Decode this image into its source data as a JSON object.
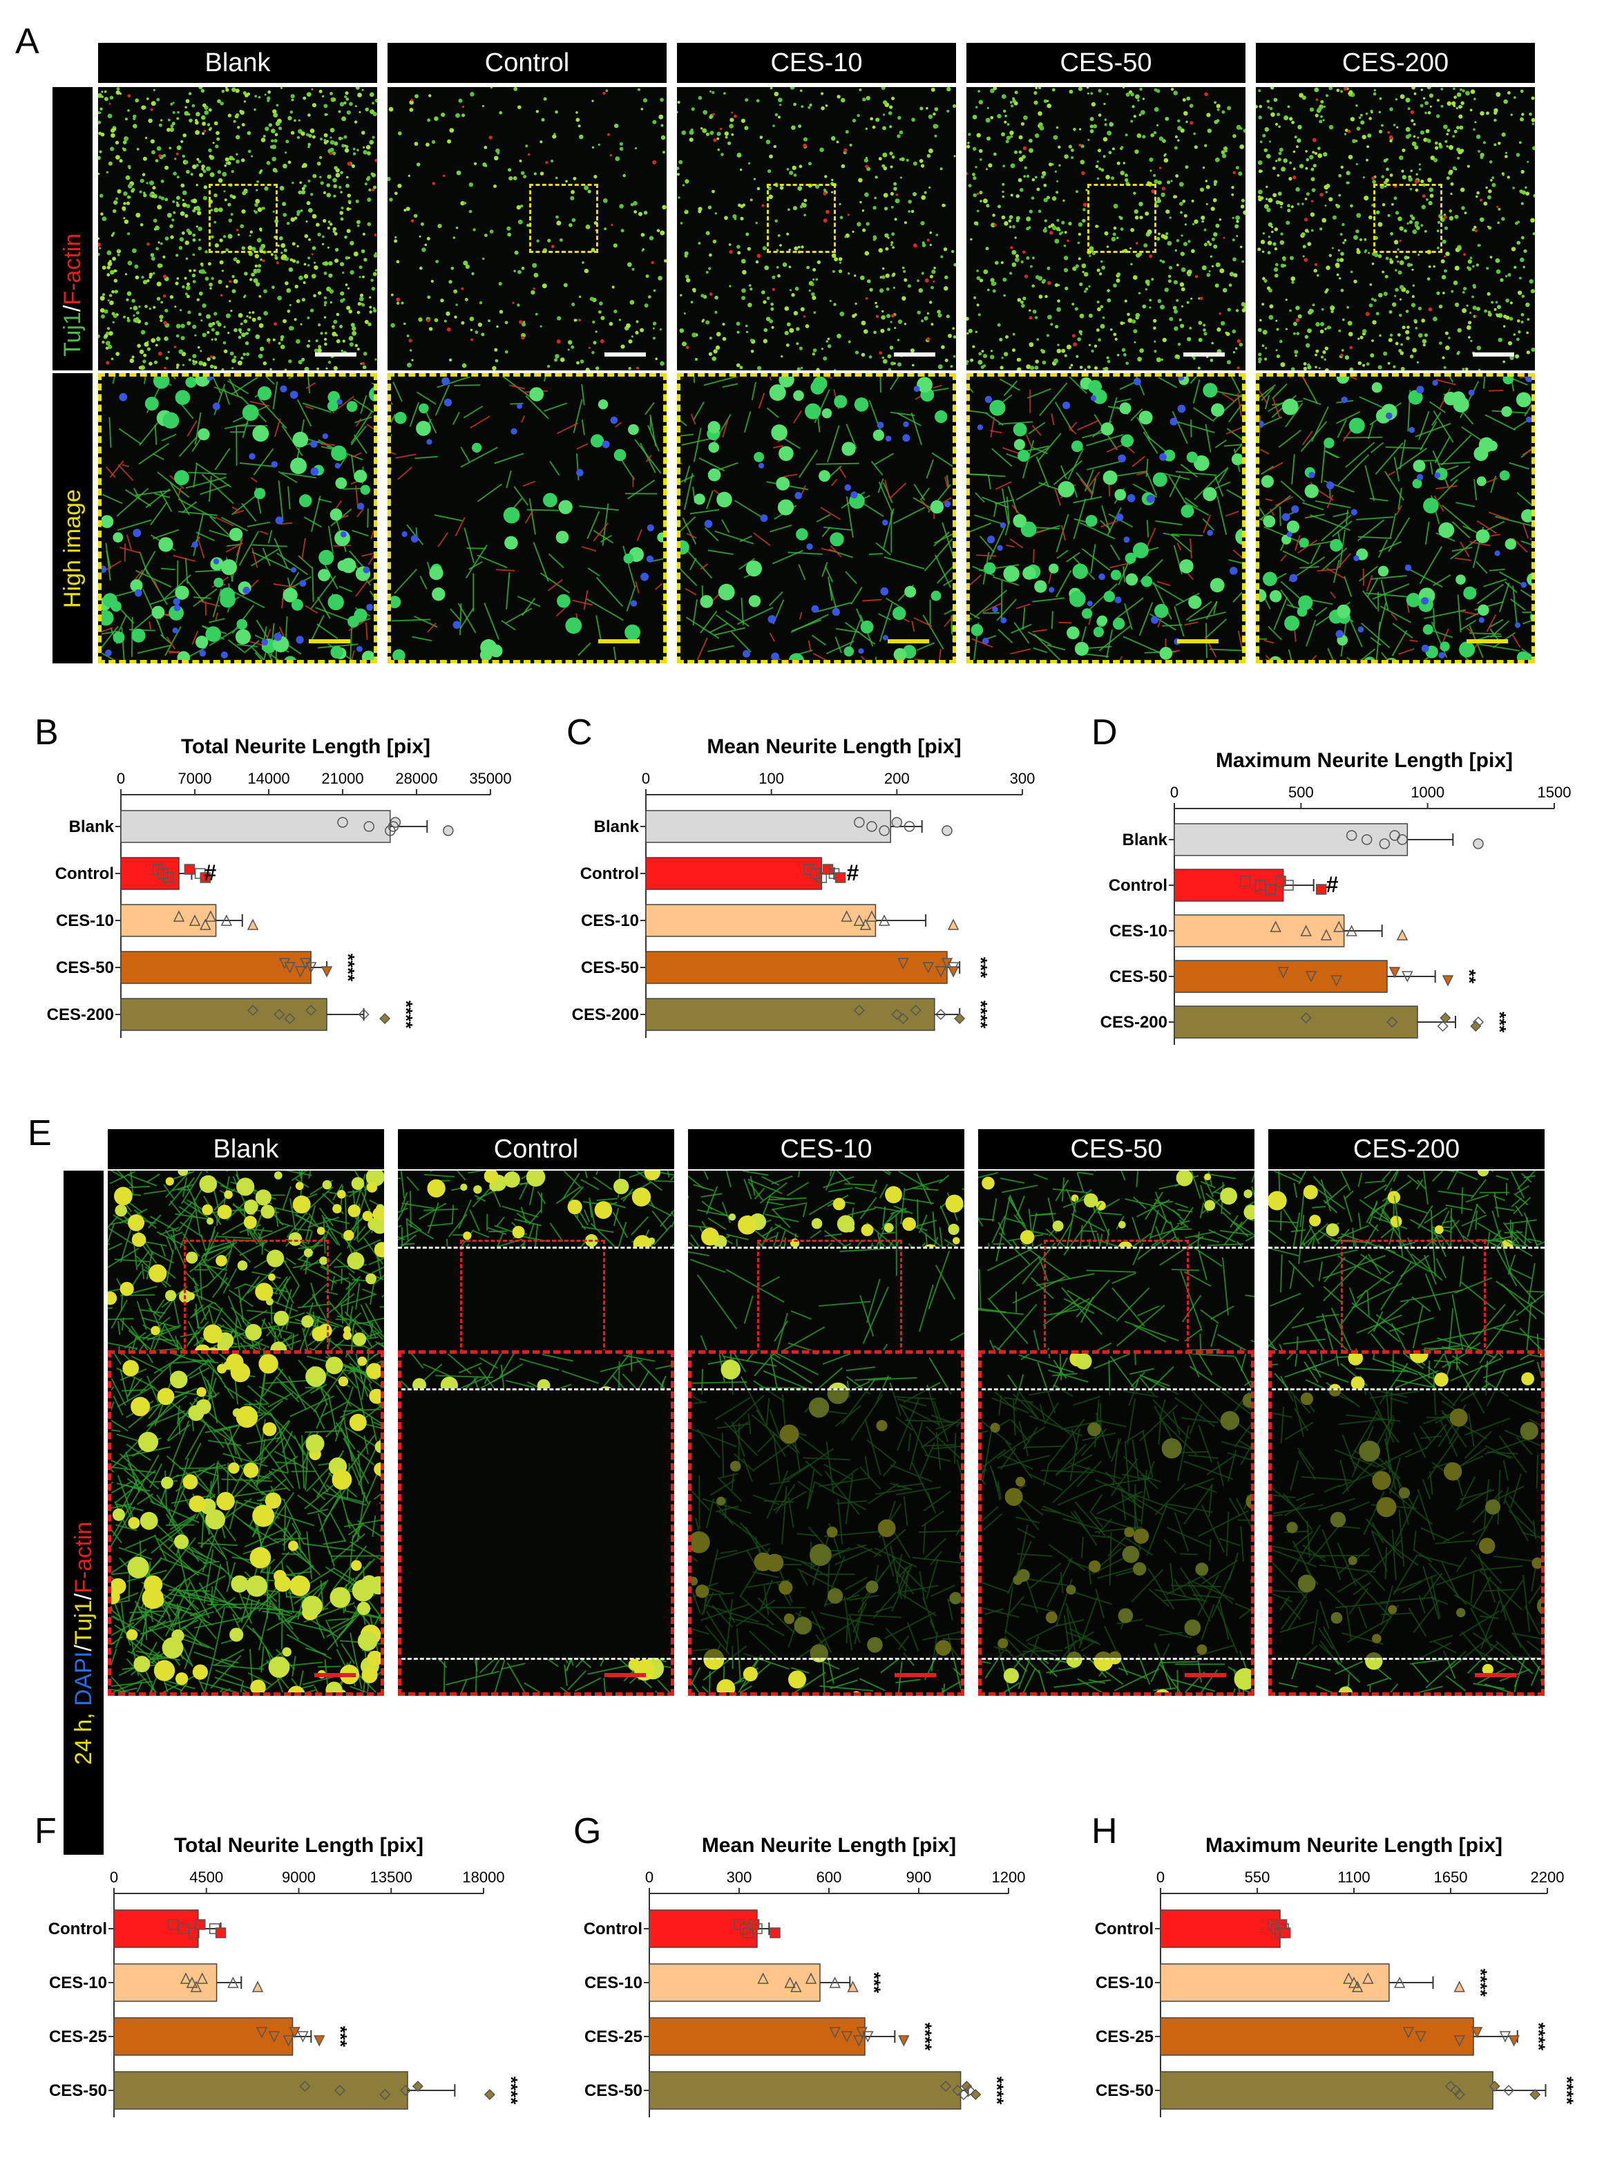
{
  "panel_letters": {
    "A": "A",
    "B": "B",
    "C": "C",
    "D": "D",
    "E": "E",
    "F": "F",
    "G": "G",
    "H": "H"
  },
  "panel_a": {
    "columns": [
      "Blank",
      "Control",
      "CES-10",
      "CES-50",
      "CES-200"
    ],
    "row1_label_tuj1": "Tuj1",
    "row1_label_slash": "/",
    "row1_label_factin": "F-actin",
    "row2_label": "High image"
  },
  "panel_e": {
    "columns": [
      "Blank",
      "Control",
      "CES-10",
      "CES-50",
      "CES-200"
    ],
    "label_24h": "24 h, ",
    "label_dapi": "DAPI",
    "label_slash1": "/",
    "label_tuj1": "Tuj1",
    "label_slash2": "/",
    "label_factin": "F-actin"
  },
  "colors": {
    "blank": "#d9d9d9",
    "control": "#ff1a1a",
    "ces_low": "#ffc58a",
    "ces_mid": "#cc6410",
    "ces_high": "#8c7d3a",
    "tuj1_green": "#4db84d",
    "factin_red": "#e02020",
    "dapi_blue": "#2a6be0",
    "highlight_yellow": "#e8e000"
  },
  "chart_data": [
    {
      "id": "B",
      "type": "bar",
      "orientation": "horizontal",
      "title": "Total Neurite Length [pix]",
      "xlim": [
        0,
        35000
      ],
      "ticks": [
        0,
        7000,
        14000,
        21000,
        28000,
        35000
      ],
      "categories": [
        "Blank",
        "Control",
        "CES-10",
        "CES-50",
        "CES-200"
      ],
      "values": [
        25500,
        5500,
        9000,
        18000,
        19500
      ],
      "errors": [
        3500,
        1200,
        2500,
        1500,
        3500
      ],
      "points": [
        [
          21000,
          23500,
          25500,
          26000,
          25800,
          31000
        ],
        [
          3500,
          4000,
          4500,
          6500,
          7500,
          8000
        ],
        [
          5500,
          7000,
          8000,
          8500,
          10000,
          12500
        ],
        [
          15500,
          16000,
          17000,
          17500,
          18000,
          19500
        ],
        [
          12500,
          15000,
          16000,
          18000,
          23000,
          25000
        ]
      ],
      "colors": [
        "#d9d9d9",
        "#ff1a1a",
        "#ffc58a",
        "#cc6410",
        "#8c7d3a"
      ],
      "sig": [
        "",
        "#",
        "",
        "****",
        "****"
      ]
    },
    {
      "id": "C",
      "type": "bar",
      "orientation": "horizontal",
      "title": "Mean Neurite Length [pix]",
      "xlim": [
        0,
        300
      ],
      "ticks": [
        0,
        100,
        200,
        300
      ],
      "categories": [
        "Blank",
        "Control",
        "CES-10",
        "CES-50",
        "CES-200"
      ],
      "values": [
        195,
        140,
        183,
        240,
        230
      ],
      "errors": [
        25,
        10,
        40,
        10,
        20
      ],
      "points": [
        [
          170,
          180,
          190,
          200,
          210,
          240
        ],
        [
          130,
          135,
          140,
          145,
          150,
          155
        ],
        [
          160,
          170,
          175,
          180,
          190,
          245
        ],
        [
          205,
          225,
          235,
          240,
          245,
          245
        ],
        [
          170,
          200,
          205,
          215,
          235,
          250
        ]
      ],
      "colors": [
        "#d9d9d9",
        "#ff1a1a",
        "#ffc58a",
        "#cc6410",
        "#8c7d3a"
      ],
      "sig": [
        "",
        "#",
        "",
        "***",
        "****"
      ]
    },
    {
      "id": "D",
      "type": "bar",
      "orientation": "horizontal",
      "title": "Maximum Neurite Length [pix]",
      "xlim": [
        0,
        1500
      ],
      "ticks": [
        0,
        500,
        1000,
        1500
      ],
      "categories": [
        "Blank",
        "Control",
        "CES-10",
        "CES-50",
        "CES-200"
      ],
      "values": [
        920,
        430,
        670,
        840,
        960
      ],
      "errors": [
        180,
        120,
        150,
        190,
        150
      ],
      "points": [
        [
          700,
          760,
          830,
          870,
          900,
          1200
        ],
        [
          280,
          340,
          380,
          420,
          450,
          580
        ],
        [
          400,
          520,
          600,
          650,
          700,
          900
        ],
        [
          430,
          540,
          640,
          870,
          920,
          1080
        ],
        [
          520,
          860,
          1060,
          1070,
          1200,
          1190
        ]
      ],
      "colors": [
        "#d9d9d9",
        "#ff1a1a",
        "#ffc58a",
        "#cc6410",
        "#8c7d3a"
      ],
      "sig": [
        "",
        "#",
        "",
        "**",
        "***"
      ]
    },
    {
      "id": "F",
      "type": "bar",
      "orientation": "horizontal",
      "title": "Total Neurite Length [pix]",
      "xlim": [
        0,
        18000
      ],
      "ticks": [
        0,
        4500,
        9000,
        13500,
        18000
      ],
      "categories": [
        "Control",
        "CES-10",
        "CES-25",
        "CES-50"
      ],
      "values": [
        4100,
        5000,
        8700,
        14300
      ],
      "errors": [
        1100,
        1200,
        900,
        2300
      ],
      "points": [
        [
          2900,
          3400,
          3900,
          4200,
          4900,
          5200
        ],
        [
          3500,
          3800,
          4000,
          4300,
          5800,
          7000
        ],
        [
          7200,
          7800,
          8500,
          8800,
          9200,
          10000
        ],
        [
          9300,
          11000,
          13200,
          14800,
          14200,
          18300
        ]
      ],
      "colors": [
        "#ff1a1a",
        "#ffc58a",
        "#cc6410",
        "#8c7d3a"
      ],
      "sig": [
        "",
        "",
        "***",
        "****"
      ]
    },
    {
      "id": "G",
      "type": "bar",
      "orientation": "horizontal",
      "title": "Mean Neurite Length [pix]",
      "xlim": [
        0,
        1200
      ],
      "ticks": [
        0,
        300,
        600,
        900,
        1200
      ],
      "categories": [
        "Control",
        "CES-10",
        "CES-25",
        "CES-50"
      ],
      "values": [
        360,
        570,
        720,
        1040
      ],
      "errors": [
        40,
        100,
        100,
        25
      ],
      "points": [
        [
          300,
          320,
          330,
          350,
          360,
          420
        ],
        [
          380,
          470,
          490,
          540,
          620,
          680
        ],
        [
          620,
          660,
          700,
          710,
          730,
          850
        ],
        [
          990,
          1030,
          1050,
          1060,
          1070,
          1090
        ]
      ],
      "colors": [
        "#ff1a1a",
        "#ffc58a",
        "#cc6410",
        "#8c7d3a"
      ],
      "sig": [
        "",
        "***",
        "****",
        "****"
      ]
    },
    {
      "id": "H",
      "type": "bar",
      "orientation": "horizontal",
      "title": "Maximum Neurite Length [pix]",
      "xlim": [
        0,
        2200
      ],
      "ticks": [
        0,
        550,
        1100,
        1650,
        2200
      ],
      "categories": [
        "Control",
        "CES-10",
        "CES-25",
        "CES-50"
      ],
      "values": [
        680,
        1300,
        1780,
        1890
      ],
      "errors": [
        30,
        250,
        250,
        300
      ],
      "points": [
        [
          640,
          660,
          680,
          690,
          700,
          710
        ],
        [
          1070,
          1100,
          1120,
          1180,
          1360,
          1700
        ],
        [
          1410,
          1480,
          1700,
          1800,
          1960,
          2010
        ],
        [
          1650,
          1680,
          1700,
          1900,
          1980,
          2130
        ]
      ],
      "colors": [
        "#ff1a1a",
        "#ffc58a",
        "#cc6410",
        "#8c7d3a"
      ],
      "sig": [
        "",
        "****",
        "****",
        "****"
      ]
    }
  ]
}
